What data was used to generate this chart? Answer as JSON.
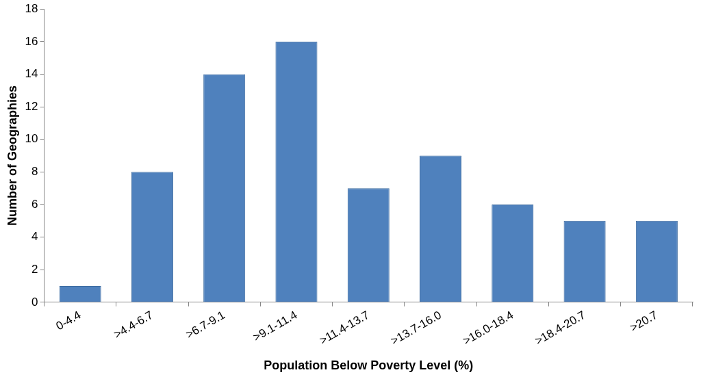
{
  "chart_data": {
    "type": "bar",
    "xlabel": "Population Below Poverty Level (%)",
    "ylabel": "Number of Geographies",
    "categories": [
      "0-4.4",
      ">4.4-6.7",
      ">6.7-9.1",
      ">9.1-11.4",
      ">11.4-13.7",
      ">13.7-16.0",
      ">16.0-18.4",
      ">18.4-20.7",
      ">20.7"
    ],
    "values": [
      1,
      8,
      14,
      16,
      7,
      9,
      6,
      5,
      5
    ],
    "color": "#4f81bd",
    "ylim": [
      0,
      18
    ],
    "yticks": [
      0,
      2,
      4,
      6,
      8,
      10,
      12,
      14,
      16,
      18
    ],
    "grid": false,
    "legend": false
  }
}
